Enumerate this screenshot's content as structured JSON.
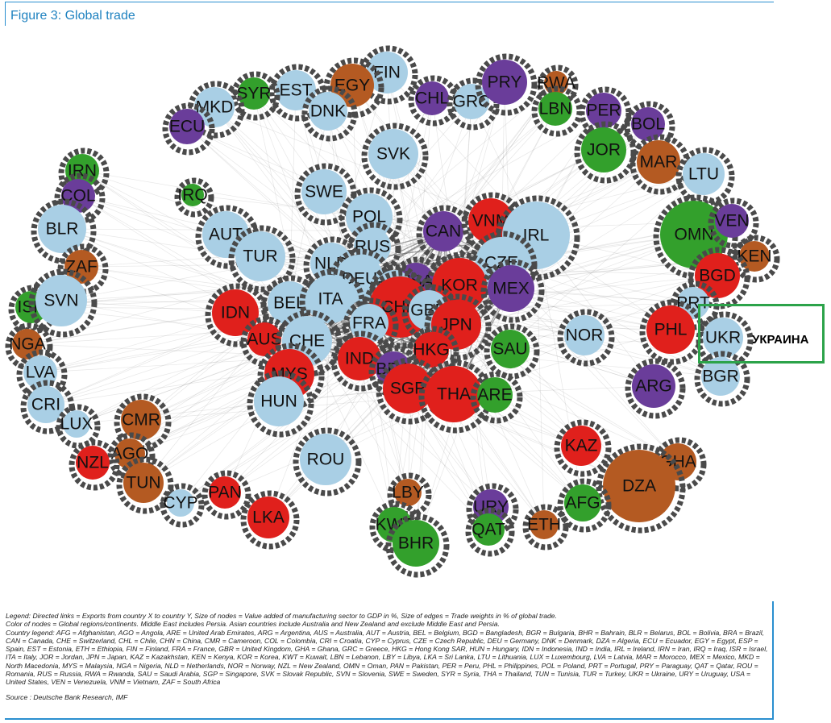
{
  "title": "Figure 3: Global trade",
  "annotation": {
    "label": "УКРАИНА",
    "highlight_color": "#2ca34a"
  },
  "colors": {
    "blue": "#a9cfe5",
    "red": "#e0201c",
    "purple": "#6a3d9a",
    "orange": "#b45a22",
    "green": "#33a02c",
    "ring": "#4a4a4a",
    "edge": "#555555"
  },
  "nodes": [
    {
      "id": "FIN",
      "color": "blue"
    },
    {
      "id": "EGY",
      "color": "orange"
    },
    {
      "id": "EST",
      "color": "blue"
    },
    {
      "id": "SYR",
      "color": "green"
    },
    {
      "id": "MKD",
      "color": "blue"
    },
    {
      "id": "ECU",
      "color": "purple"
    },
    {
      "id": "DNK",
      "color": "blue"
    },
    {
      "id": "CHL",
      "color": "purple"
    },
    {
      "id": "GRC",
      "color": "blue"
    },
    {
      "id": "PRY",
      "color": "purple"
    },
    {
      "id": "RWA",
      "color": "orange"
    },
    {
      "id": "LBN",
      "color": "green"
    },
    {
      "id": "PER",
      "color": "purple"
    },
    {
      "id": "BOL",
      "color": "purple"
    },
    {
      "id": "JOR",
      "color": "green"
    },
    {
      "id": "MAR",
      "color": "orange"
    },
    {
      "id": "LTU",
      "color": "blue"
    },
    {
      "id": "SVK",
      "color": "blue"
    },
    {
      "id": "IRN",
      "color": "green"
    },
    {
      "id": "COL",
      "color": "purple"
    },
    {
      "id": "IRQ",
      "color": "green"
    },
    {
      "id": "SWE",
      "color": "blue"
    },
    {
      "id": "BLR",
      "color": "blue"
    },
    {
      "id": "AUT",
      "color": "blue"
    },
    {
      "id": "POL",
      "color": "blue"
    },
    {
      "id": "RUS",
      "color": "blue"
    },
    {
      "id": "CAN",
      "color": "purple"
    },
    {
      "id": "VNM",
      "color": "red"
    },
    {
      "id": "IRL",
      "color": "blue"
    },
    {
      "id": "OMN",
      "color": "green"
    },
    {
      "id": "VEN",
      "color": "purple"
    },
    {
      "id": "KEN",
      "color": "orange"
    },
    {
      "id": "ZAF",
      "color": "orange"
    },
    {
      "id": "TUR",
      "color": "blue"
    },
    {
      "id": "NLD",
      "color": "blue"
    },
    {
      "id": "CZE",
      "color": "blue"
    },
    {
      "id": "BGD",
      "color": "red"
    },
    {
      "id": "ISR",
      "color": "green"
    },
    {
      "id": "SVN",
      "color": "blue"
    },
    {
      "id": "DEU",
      "color": "blue"
    },
    {
      "id": "USA",
      "color": "purple"
    },
    {
      "id": "KOR",
      "color": "red"
    },
    {
      "id": "MEX",
      "color": "purple"
    },
    {
      "id": "ESP",
      "color": "blue"
    },
    {
      "id": "BEL",
      "color": "blue"
    },
    {
      "id": "ITA",
      "color": "blue"
    },
    {
      "id": "IDN",
      "color": "red"
    },
    {
      "id": "CHN",
      "color": "red"
    },
    {
      "id": "GBR",
      "color": "blue"
    },
    {
      "id": "PRT",
      "color": "blue"
    },
    {
      "id": "NGA",
      "color": "orange"
    },
    {
      "id": "AUS",
      "color": "red"
    },
    {
      "id": "CHE",
      "color": "blue"
    },
    {
      "id": "FRA",
      "color": "blue"
    },
    {
      "id": "JPN",
      "color": "red"
    },
    {
      "id": "NOR",
      "color": "blue"
    },
    {
      "id": "PHL",
      "color": "red"
    },
    {
      "id": "UKR",
      "color": "blue"
    },
    {
      "id": "IND",
      "color": "red"
    },
    {
      "id": "HKG",
      "color": "red"
    },
    {
      "id": "SAU",
      "color": "green"
    },
    {
      "id": "LVA",
      "color": "blue"
    },
    {
      "id": "MYS",
      "color": "red"
    },
    {
      "id": "BRA",
      "color": "purple"
    },
    {
      "id": "ARG",
      "color": "purple"
    },
    {
      "id": "BGR",
      "color": "blue"
    },
    {
      "id": "CRI",
      "color": "blue"
    },
    {
      "id": "HUN",
      "color": "blue"
    },
    {
      "id": "SGP",
      "color": "red"
    },
    {
      "id": "THA",
      "color": "red"
    },
    {
      "id": "ARE",
      "color": "green"
    },
    {
      "id": "LUX",
      "color": "blue"
    },
    {
      "id": "CMR",
      "color": "orange"
    },
    {
      "id": "AGO",
      "color": "orange"
    },
    {
      "id": "NZL",
      "color": "red"
    },
    {
      "id": "KAZ",
      "color": "red"
    },
    {
      "id": "ROU",
      "color": "blue"
    },
    {
      "id": "GHA",
      "color": "orange"
    },
    {
      "id": "TUN",
      "color": "orange"
    },
    {
      "id": "DZA",
      "color": "orange"
    },
    {
      "id": "PAN",
      "color": "red"
    },
    {
      "id": "CYP",
      "color": "blue"
    },
    {
      "id": "LBY",
      "color": "orange"
    },
    {
      "id": "URY",
      "color": "purple"
    },
    {
      "id": "AFG",
      "color": "green"
    },
    {
      "id": "LKA",
      "color": "red"
    },
    {
      "id": "KWT",
      "color": "green"
    },
    {
      "id": "QAT",
      "color": "green"
    },
    {
      "id": "ETH",
      "color": "orange"
    },
    {
      "id": "BHR",
      "color": "green"
    }
  ],
  "legend": {
    "lines": [
      "Legend: Directed links = Exports from country X to country Y, Size of nodes = Value added of manufacturing sector to GDP in %, Size of edges = Trade weights in % of global trade.",
      "Color of nodes = Global regions/continents. Middle East includes Persia. Asian countries include Australia and New Zealand and exclude Middle East and Persia.",
      "Country legend: AFG = Afghanistan, AGO = Angola, ARE = United Arab Emirates, ARG = Argentina, AUS = Australia, AUT = Austria, BEL = Belgium, BGD = Bangladesh, BGR = Bulgaria, BHR = Bahrain, BLR = Belarus, BOL = Bolivia, BRA = Brazil, CAN = Canada, CHE = Switzerland, CHL = Chile, CHN = China, CMR = Cameroon, COL = Colombia, CRI = Croatia, CYP = Cyprus, CZE = Czech Republic, DEU = Germany, DNK = Denmark, DZA = Algeria, ECU = Ecuador, EGY = Egypt, ESP = Spain, EST = Estonia, ETH = Ethiopia, FIN = Finland, FRA = France, GBR = United Kingdom, GHA = Ghana, GRC = Greece, HKG = Hong Kong SAR, HUN = Hungary, IDN = Indonesia, IND = India, IRL = Ireland, IRN = Iran, IRQ = Iraq, ISR = Israel, ITA = Italy, JOR = Jordan, JPN = Japan, KAZ = Kazakhstan, KEN = Kenya, KOR = Korea, KWT = Kuwait, LBN = Lebanon, LBY = Libya, LKA = Sri Lanka, LTU = Lithuania, LUX = Luxembourg, LVA = Latvia, MAR = Morocco, MEX = Mexico, MKD = North Macedonia, MYS = Malaysia, NGA = Nigeria, NLD = Netherlands, NOR = Norway, NZL = New Zealand, OMN = Oman, PAN = Pakistan, PER = Peru, PHL = Philippines, POL = Poland, PRT = Portugal, PRY = Paraguay, QAT = Qatar, ROU = Romania, RUS = Russia, RWA = Rwanda, SAU = Saudi Arabia, SGP = Singapore, SVK = Slovak Republic, SVN = Slovenia, SWE = Sweden, SYR = Syria, THA = Thailand, TUN = Tunisia, TUR = Turkey, UKR = Ukraine, URY = Uruguay, USA = United States, VEN = Venezuela, VNM = Vietnam, ZAF = South Africa"
    ],
    "source": "Source : Deutsche Bank Research, IMF"
  }
}
